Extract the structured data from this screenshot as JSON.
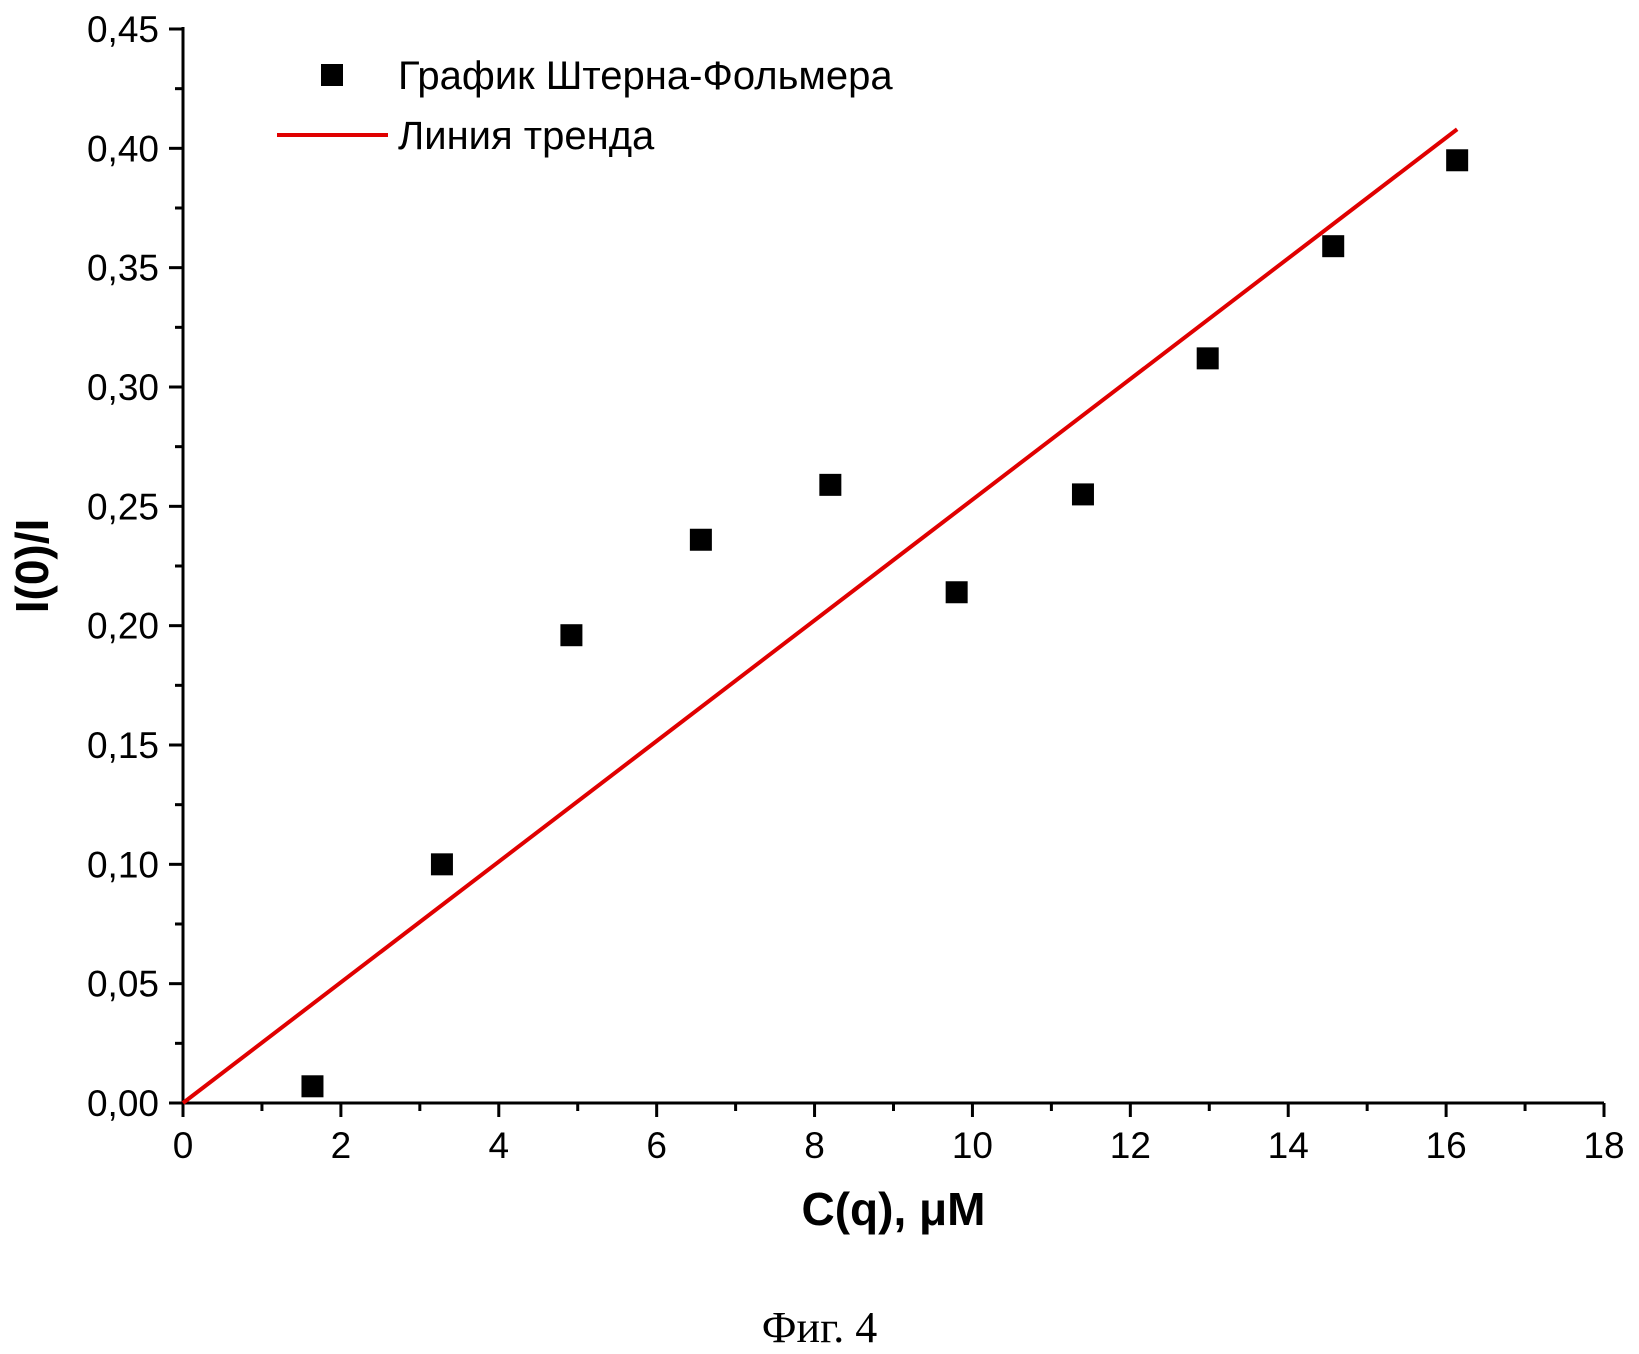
{
  "chart_data": {
    "type": "scatter",
    "xlabel": "C(q), μM",
    "ylabel": "I(0)/I",
    "xlim": [
      0,
      18
    ],
    "ylim": [
      0,
      0.45
    ],
    "x_ticks": [
      0,
      2,
      4,
      6,
      8,
      10,
      12,
      14,
      16,
      18
    ],
    "x_tick_labels": [
      "0",
      "2",
      "4",
      "6",
      "8",
      "10",
      "12",
      "14",
      "16",
      "18"
    ],
    "y_ticks": [
      0,
      0.05,
      0.1,
      0.15,
      0.2,
      0.25,
      0.3,
      0.35,
      0.4,
      0.45
    ],
    "y_tick_labels": [
      "0,00",
      "0,05",
      "0,10",
      "0,15",
      "0,20",
      "0,25",
      "0,30",
      "0,35",
      "0,40",
      "0,45"
    ],
    "grid": false,
    "legend_position": "top-left",
    "series": [
      {
        "name": "График Штерна-Фольмера",
        "kind": "scatter",
        "marker": "square",
        "color": "#000000",
        "x": [
          1.64,
          3.28,
          4.92,
          6.56,
          8.2,
          9.8,
          11.4,
          12.98,
          14.57,
          16.14
        ],
        "y": [
          0.007,
          0.1,
          0.196,
          0.236,
          0.259,
          0.214,
          0.255,
          0.312,
          0.359,
          0.395
        ]
      },
      {
        "name": "Линия тренда",
        "kind": "line",
        "color": "#e00000",
        "x": [
          0,
          16.14
        ],
        "y": [
          0,
          0.408
        ]
      }
    ]
  },
  "caption": "Фиг. 4"
}
